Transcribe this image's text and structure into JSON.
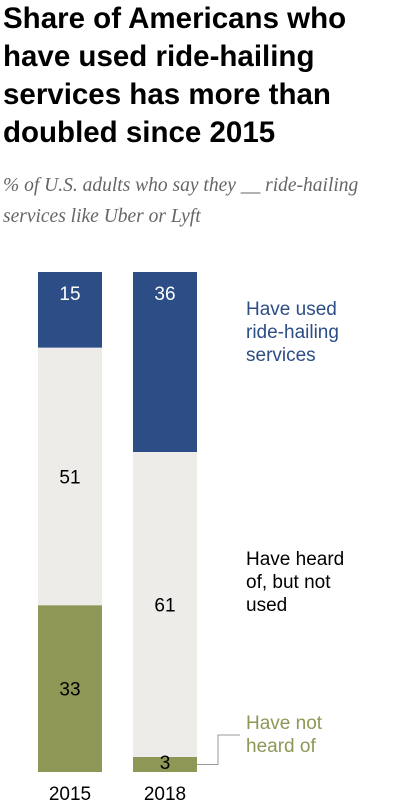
{
  "title": "Share of Americans who have used ride-hailing services has more than doubled since 2015",
  "subtitle": "% of U.S. adults who say they __ ride-hailing services like Uber or Lyft",
  "colors": {
    "used": "#2c4d86",
    "heard": "#eeece8",
    "not_heard": "#8f9756",
    "used_text": "#2c4d86",
    "not_heard_text": "#8f9756"
  },
  "chart_data": {
    "type": "bar",
    "stacked": true,
    "orientation": "vertical",
    "categories": [
      "2015",
      "2018"
    ],
    "series": [
      {
        "name": "Have used ride-hailing services",
        "values": [
          15,
          36
        ]
      },
      {
        "name": "Have heard of, but not used",
        "values": [
          51,
          61
        ]
      },
      {
        "name": "Have not heard of",
        "values": [
          33,
          3
        ]
      }
    ],
    "legend_lines": [
      [
        "Have used",
        "ride-hailing",
        "services"
      ],
      [
        "Have heard",
        "of, but not",
        "used"
      ],
      [
        "Have not",
        "heard of"
      ]
    ],
    "legend_placement": "right, inline labels",
    "xlabel": "",
    "ylabel": "",
    "grid": false
  }
}
